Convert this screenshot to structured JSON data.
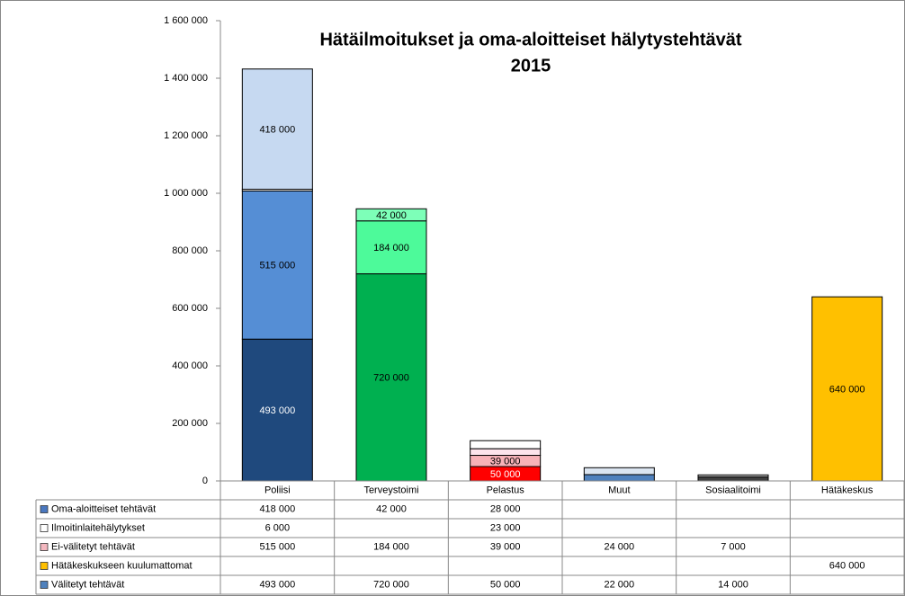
{
  "chart_data": {
    "type": "stacked-bar",
    "title": "Hätäilmoitukset ja oma-aloitteiset hälytystehtävät",
    "subtitle": "2015",
    "categories": [
      "Poliisi",
      "Terveystoimi",
      "Pelastus",
      "Muut",
      "Sosiaalitoimi",
      "Hätäkeskus"
    ],
    "series": [
      {
        "name": "Oma-aloitteiset tehtävät",
        "color": "#4a78c0",
        "values": [
          418000,
          42000,
          28000,
          null,
          null,
          null
        ],
        "value_labels": [
          "418 000",
          "42 000",
          "28 000",
          null,
          null,
          null
        ],
        "point_colors": [
          "#c6d9f1",
          "#7dffb8",
          "#ffffff",
          null,
          null,
          null
        ]
      },
      {
        "name": "Ilmoitinlaitehälytykset",
        "color": "#ffffff",
        "values": [
          6000,
          null,
          23000,
          null,
          null,
          null
        ],
        "value_labels": [
          "6 000",
          null,
          "23 000",
          null,
          null,
          null
        ],
        "point_colors": [
          "#ffffff",
          null,
          "#fde4ec",
          null,
          null,
          null
        ]
      },
      {
        "name": "Ei-välitetyt tehtävät",
        "color": "#f4b8c0",
        "values": [
          515000,
          184000,
          39000,
          24000,
          7000,
          null
        ],
        "value_labels": [
          "515 000",
          "184 000",
          "39 000",
          "24 000",
          "7 000",
          null
        ],
        "point_colors": [
          "#558ed5",
          "#4dfa9a",
          "#f7b2b8",
          "#dbe5f1",
          "#bfbfbf",
          null
        ]
      },
      {
        "name": "Hätäkeskukseen kuulumattomat",
        "color": "#ffc000",
        "values": [
          null,
          null,
          null,
          null,
          null,
          640000
        ],
        "value_labels": [
          null,
          null,
          null,
          null,
          null,
          "640 000"
        ],
        "point_colors": [
          null,
          null,
          null,
          null,
          null,
          "#ffc000"
        ]
      },
      {
        "name": "Välitetyt tehtävät",
        "color": "#4f81bd",
        "values": [
          493000,
          720000,
          50000,
          22000,
          14000,
          null
        ],
        "value_labels": [
          "493 000",
          "720 000",
          "50 000",
          "22 000",
          "14 000",
          null
        ],
        "point_colors": [
          "#1f497d",
          "#00b050",
          "#ff0000",
          "#4f81bd",
          "#404040",
          null
        ]
      }
    ],
    "ylim": [
      0,
      1600000
    ],
    "yticks": [
      0,
      {
        "value": 200000,
        "label": "200 000"
      },
      {
        "value": 400000,
        "label": "400 000"
      },
      {
        "value": 600000,
        "label": "600 000"
      },
      {
        "value": 800000,
        "label": "800 000"
      },
      {
        "value": 1000000,
        "label": "1 000 000"
      },
      {
        "value": 1200000,
        "label": "1 200 000"
      },
      {
        "value": 1400000,
        "label": "1 400 000"
      },
      {
        "value": 1600000,
        "label": "1 600 000"
      }
    ],
    "grid": false
  }
}
